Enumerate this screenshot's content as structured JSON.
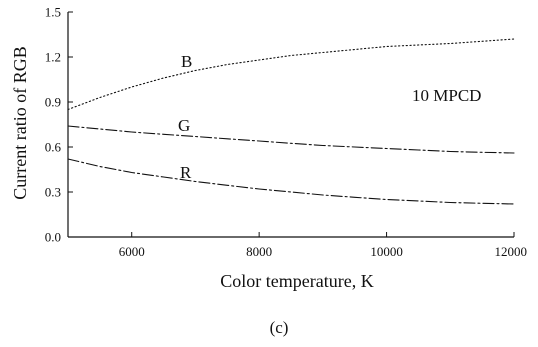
{
  "chart_data": {
    "type": "line",
    "title": "",
    "xlabel": "Color temperature, K",
    "ylabel": "Current ratio of RGB",
    "xlim": [
      5000,
      12000
    ],
    "ylim": [
      0.0,
      1.5
    ],
    "x_ticks": [
      6000,
      8000,
      10000,
      12000
    ],
    "x_tick_labels": [
      "6000",
      "8000",
      "10000",
      "12000"
    ],
    "y_ticks": [
      0.0,
      0.3,
      0.6,
      0.9,
      1.2,
      1.5
    ],
    "y_tick_labels": [
      "0.0",
      "0.3",
      "0.6",
      "0.9",
      "1.2",
      "1.5"
    ],
    "grid": false,
    "annotation": "10 MPCD",
    "caption": "(c)",
    "series": [
      {
        "name": "B",
        "line_style": "dotted",
        "x": [
          5000,
          5500,
          6000,
          6500,
          7000,
          7500,
          8000,
          8500,
          9000,
          9500,
          10000,
          10500,
          11000,
          11500,
          12000
        ],
        "y": [
          0.85,
          0.93,
          1.0,
          1.06,
          1.11,
          1.15,
          1.18,
          1.21,
          1.23,
          1.25,
          1.27,
          1.28,
          1.29,
          1.305,
          1.32
        ]
      },
      {
        "name": "G",
        "line_style": "dash-dot",
        "x": [
          5000,
          5500,
          6000,
          6500,
          7000,
          7500,
          8000,
          8500,
          9000,
          9500,
          10000,
          10500,
          11000,
          11500,
          12000
        ],
        "y": [
          0.74,
          0.72,
          0.7,
          0.685,
          0.67,
          0.655,
          0.64,
          0.625,
          0.61,
          0.6,
          0.59,
          0.58,
          0.57,
          0.565,
          0.56
        ]
      },
      {
        "name": "R",
        "line_style": "dash-dot",
        "x": [
          5000,
          5500,
          6000,
          6500,
          7000,
          7500,
          8000,
          8500,
          9000,
          9500,
          10000,
          10500,
          11000,
          11500,
          12000
        ],
        "y": [
          0.52,
          0.47,
          0.43,
          0.4,
          0.37,
          0.345,
          0.32,
          0.3,
          0.28,
          0.265,
          0.25,
          0.24,
          0.23,
          0.225,
          0.22
        ]
      }
    ]
  }
}
